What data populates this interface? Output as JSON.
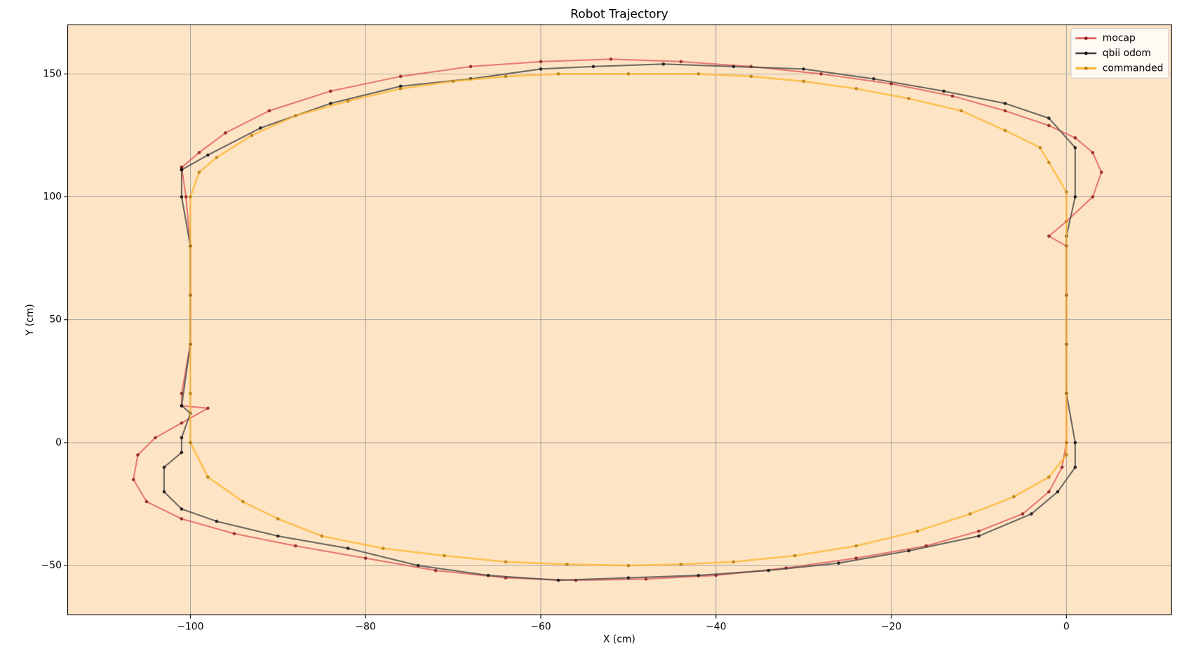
{
  "chart_data": {
    "type": "line",
    "title": "Robot Trajectory",
    "x_label": "X (cm)",
    "y_label": "Y (cm)",
    "xlim": [
      -114,
      12
    ],
    "ylim": [
      -70,
      170
    ],
    "xticks": [
      {
        "value": -100,
        "label": "−100"
      },
      {
        "value": -80,
        "label": "−80"
      },
      {
        "value": -60,
        "label": "−60"
      },
      {
        "value": -40,
        "label": "−40"
      },
      {
        "value": -20,
        "label": "−20"
      },
      0
    ],
    "yticks": [
      {
        "value": -50,
        "label": "−50"
      },
      0,
      50,
      100,
      150
    ],
    "grid": true,
    "legend": "upper right",
    "background": "#fde4c5",
    "series": [
      {
        "name": "mocap",
        "color": "#e05a5a",
        "marker_color": "#8b1a1a",
        "x": [
          -101,
          -100.5,
          -100,
          -100,
          -100,
          -101,
          -101,
          -98,
          -101,
          -104,
          -106,
          -106.5,
          -105,
          -101,
          -95,
          -88,
          -80,
          -72,
          -64,
          -56,
          -48,
          -40,
          -32,
          -24,
          -16,
          -10,
          -5,
          -2,
          -0.5,
          0,
          0,
          0,
          0,
          0,
          -2,
          0,
          3,
          4,
          3,
          1,
          -2,
          -7,
          -13,
          -20,
          -28,
          -36,
          -44,
          -52,
          -60,
          -68,
          -76,
          -84,
          -91,
          -96,
          -99,
          -101
        ],
        "values": [
          112,
          100,
          80,
          60,
          40,
          20,
          15,
          14,
          8,
          2,
          -5,
          -15,
          -24,
          -31,
          -37,
          -42,
          -47,
          -52,
          -55,
          -56,
          -55.5,
          -54,
          -51,
          -47,
          -42,
          -36,
          -29,
          -20,
          -10,
          0,
          20,
          40,
          60,
          80,
          84,
          90,
          100,
          110,
          118,
          124,
          129,
          135,
          141,
          146,
          150,
          153,
          155,
          156,
          155,
          153,
          149,
          143,
          135,
          126,
          118,
          112
        ]
      },
      {
        "name": "qbii odom",
        "color": "#444444",
        "marker_color": "#111111",
        "x": [
          -101,
          -101,
          -100,
          -100,
          -100,
          -101,
          -100,
          -101,
          -101,
          -103,
          -103,
          -101,
          -97,
          -90,
          -82,
          -74,
          -66,
          -58,
          -50,
          -42,
          -34,
          -26,
          -18,
          -10,
          -4,
          -1,
          1,
          1,
          0,
          0,
          0,
          0,
          1,
          1,
          -2,
          -7,
          -14,
          -22,
          -30,
          -38,
          -46,
          -54,
          -60,
          -68,
          -76,
          -84,
          -92,
          -98,
          -101
        ],
        "values": [
          111,
          100,
          80,
          60,
          40,
          15,
          12,
          2,
          -4,
          -10,
          -20,
          -27,
          -32,
          -38,
          -43,
          -50,
          -54,
          -56,
          -55,
          -54,
          -52,
          -49,
          -44,
          -38,
          -29,
          -20,
          -10,
          0,
          20,
          40,
          60,
          84,
          100,
          120,
          132,
          138,
          143,
          148,
          152,
          153,
          154,
          153,
          152,
          148,
          145,
          138,
          128,
          117,
          111
        ]
      },
      {
        "name": "commanded",
        "color": "#ffb733",
        "marker_color": "#b07a10",
        "x": [
          -100,
          -100,
          -100,
          -100,
          -100,
          -100,
          -99,
          -97,
          -93,
          -88,
          -82,
          -76,
          -70,
          -64,
          -58,
          -50,
          -42,
          -36,
          -30,
          -24,
          -18,
          -12,
          -7,
          -3,
          -2,
          0,
          0,
          0,
          0,
          0,
          0,
          0,
          -2,
          -6,
          -11,
          -17,
          -24,
          -31,
          -38,
          -44,
          -50,
          -57,
          -64,
          -71,
          -78,
          -85,
          -90,
          -94,
          -98,
          -100
        ],
        "values": [
          0,
          20,
          40,
          60,
          80,
          100,
          110,
          116,
          125,
          133,
          139,
          144,
          147,
          149,
          150,
          150,
          150,
          149,
          147,
          144,
          140,
          135,
          127,
          120,
          114,
          102,
          80,
          60,
          40,
          20,
          0,
          -5,
          -14,
          -22,
          -29,
          -36,
          -42,
          -46,
          -48.5,
          -49.5,
          -50,
          -49.5,
          -48.5,
          -46,
          -43,
          -38,
          -31,
          -24,
          -14,
          0
        ]
      }
    ]
  }
}
